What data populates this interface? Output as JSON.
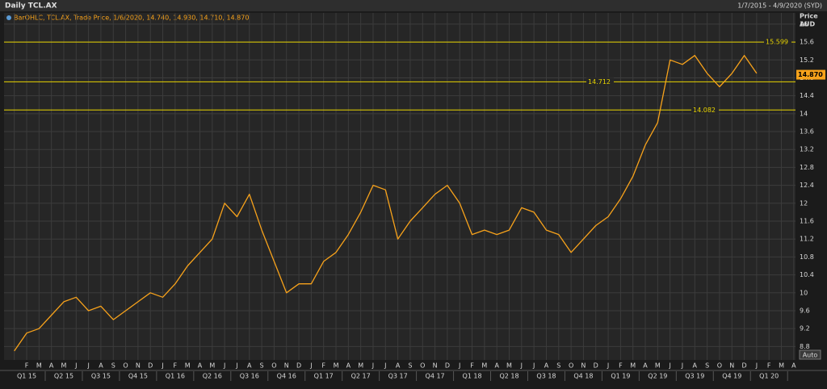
{
  "header": {
    "title": "Daily TCL.AX",
    "range": "1/7/2015 - 4/9/2020 (SYD)"
  },
  "auto_button": "Auto",
  "chart_data": {
    "type": "line",
    "legend": "BarOHLC, TCL.AX, Trade Price, 1/6/2020, 14.740, 14.930, 14.710, 14.870",
    "y_axis_label": [
      "Price",
      "AUD"
    ],
    "categories": [
      null,
      "F",
      "M",
      "A",
      "M",
      "J",
      "J",
      "A",
      "S",
      "O",
      "N",
      "D",
      "J",
      "F",
      "M",
      "A",
      "M",
      "J",
      "J",
      "A",
      "S",
      "O",
      "N",
      "D",
      "J",
      "F",
      "M",
      "A",
      "M",
      "J",
      "J",
      "A",
      "S",
      "O",
      "N",
      "D",
      "J",
      "F",
      "M",
      "A",
      "M",
      "J",
      "J",
      "A",
      "S",
      "O",
      "N",
      "D",
      "J",
      "F",
      "M",
      "A",
      "M",
      "J",
      "J",
      "A",
      "S",
      "O",
      "N",
      "D",
      "J",
      "F",
      "M",
      "A"
    ],
    "quarters": [
      "Q1 15",
      "Q2 15",
      "Q3 15",
      "Q4 15",
      "Q1 16",
      "Q2 16",
      "Q3 16",
      "Q4 16",
      "Q1 17",
      "Q2 17",
      "Q3 17",
      "Q4 17",
      "Q1 18",
      "Q2 18",
      "Q3 18",
      "Q4 18",
      "Q1 19",
      "Q2 19",
      "Q3 19",
      "Q4 19",
      "Q1 20"
    ],
    "series": [
      {
        "name": "TCL.AX",
        "color": "#f7a21b",
        "values": [
          8.7,
          9.1,
          9.2,
          9.5,
          9.8,
          9.9,
          9.6,
          9.7,
          9.4,
          9.6,
          9.8,
          10.0,
          9.9,
          10.2,
          10.6,
          10.9,
          11.2,
          12.0,
          11.7,
          12.2,
          11.4,
          10.7,
          10.0,
          10.2,
          10.2,
          10.7,
          10.9,
          11.3,
          11.8,
          12.4,
          12.3,
          11.2,
          11.6,
          11.9,
          12.2,
          12.4,
          12.0,
          11.3,
          11.4,
          11.3,
          11.4,
          11.9,
          11.8,
          11.4,
          11.3,
          10.9,
          11.2,
          11.5,
          11.7,
          12.1,
          12.6,
          13.3,
          13.8,
          15.2,
          15.1,
          15.3,
          14.9,
          14.6,
          14.9,
          15.3,
          14.9,
          null,
          null,
          null
        ]
      }
    ],
    "levels": [
      15.599,
      14.712,
      14.082
    ],
    "level_color": "#e8d400",
    "last_price": {
      "value": 14.87,
      "label": "14.870"
    },
    "ylim": [
      8.5,
      16.25
    ],
    "yticks": [
      8.8,
      9.2,
      9.6,
      10,
      10.4,
      10.8,
      11.2,
      11.6,
      12,
      12.4,
      12.8,
      13.2,
      13.6,
      14,
      14.4,
      14.8,
      15.2,
      15.6,
      16
    ],
    "grid": true
  }
}
